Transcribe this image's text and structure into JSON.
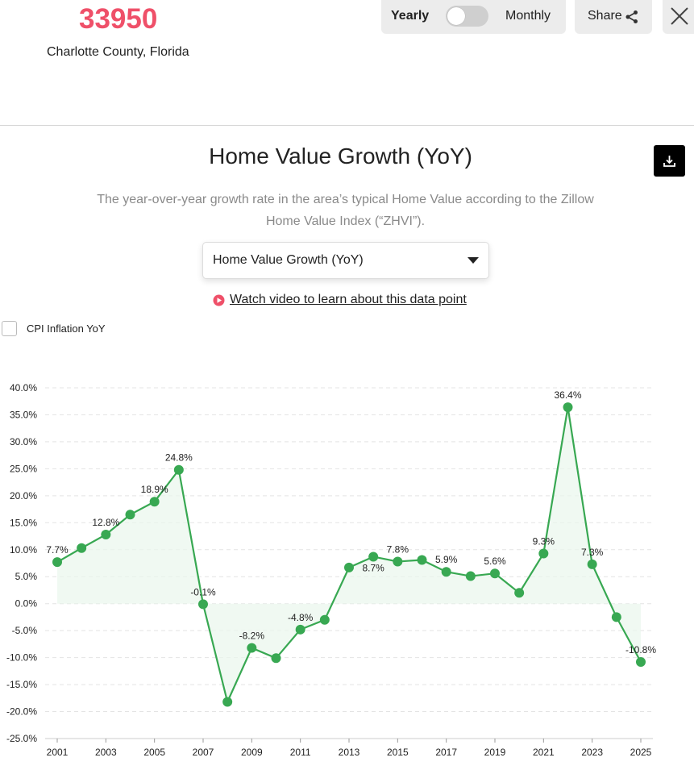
{
  "header": {
    "zip": "33950",
    "county": "Charlotte County, Florida",
    "toggle": {
      "left_label": "Yearly",
      "right_label": "Monthly",
      "selected": "Yearly"
    },
    "share_label": "Share"
  },
  "section": {
    "title": "Home Value Growth (YoY)",
    "description": "The year-over-year growth rate in the area’s typical Home Value according to the Zillow Home Value Index (“ZHVI”).",
    "dropdown_value": "Home Value Growth (YoY)",
    "video_link": "Watch video to learn about this data point",
    "cpi_checkbox_label": "CPI Inflation YoY",
    "cpi_checked": false
  },
  "colors": {
    "accent": "#ef5069",
    "line": "#38a852",
    "fill": "#eaf6ec"
  },
  "chart_data": {
    "type": "line",
    "x": [
      2001,
      2002,
      2003,
      2004,
      2005,
      2006,
      2007,
      2008,
      2009,
      2010,
      2011,
      2012,
      2013,
      2014,
      2015,
      2016,
      2017,
      2018,
      2019,
      2020,
      2021,
      2022,
      2023,
      2024,
      2025
    ],
    "series": [
      {
        "values": [
          7.7,
          10.3,
          12.8,
          16.5,
          18.9,
          24.8,
          -0.1,
          -18.2,
          -8.2,
          -10.1,
          -4.8,
          -3.0,
          6.7,
          8.7,
          7.8,
          8.1,
          5.9,
          5.1,
          5.6,
          2.0,
          9.3,
          36.4,
          7.3,
          -2.5,
          -10.8
        ]
      }
    ],
    "data_labels": [
      {
        "x": 2001,
        "text": "7.7%"
      },
      {
        "x": 2003,
        "text": "12.8%"
      },
      {
        "x": 2005,
        "text": "18.9%"
      },
      {
        "x": 2006,
        "text": "24.8%"
      },
      {
        "x": 2007,
        "text": "-0.1%"
      },
      {
        "x": 2009,
        "text": "-8.2%"
      },
      {
        "x": 2011,
        "text": "-4.8%"
      },
      {
        "x": 2014,
        "text": "8.7%"
      },
      {
        "x": 2015,
        "text": "7.8%"
      },
      {
        "x": 2017,
        "text": "5.9%"
      },
      {
        "x": 2019,
        "text": "5.6%"
      },
      {
        "x": 2021,
        "text": "9.3%"
      },
      {
        "x": 2022,
        "text": "36.4%"
      },
      {
        "x": 2023,
        "text": "7.3%"
      },
      {
        "x": 2025,
        "text": "-10.8%"
      }
    ],
    "ylim": [
      -25,
      40
    ],
    "y_ticks": [
      "40.0%",
      "35.0%",
      "30.0%",
      "25.0%",
      "20.0%",
      "15.0%",
      "10.0%",
      "5.0%",
      "0.0%",
      "-5.0%",
      "-10.0%",
      "-15.0%",
      "-20.0%",
      "-25.0%"
    ],
    "x_ticks": [
      "2001",
      "2003",
      "2005",
      "2007",
      "2009",
      "2011",
      "2013",
      "2015",
      "2017",
      "2019",
      "2021",
      "2023",
      "2025"
    ],
    "grid": true
  }
}
